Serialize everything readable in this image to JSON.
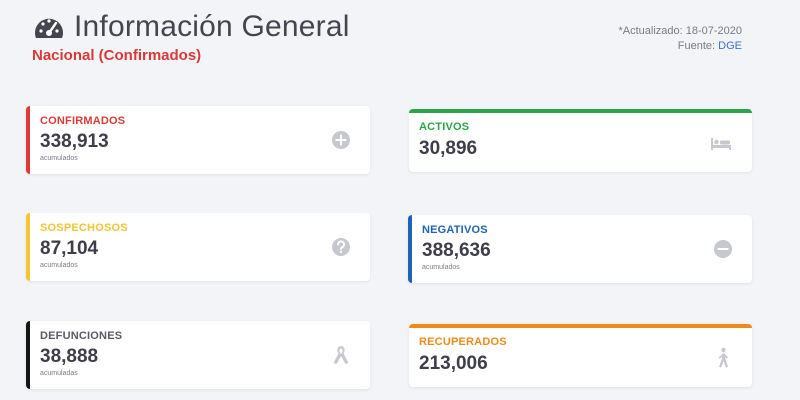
{
  "header": {
    "title": "Información General",
    "subtitle": "Nacional (Confirmados)",
    "updated": "*Actualizado: 18-07-2020",
    "source_label": "Fuente:",
    "source_link": "DGE",
    "icon": "dashboard-gauge-icon"
  },
  "colors": {
    "confirmados": "#dd3b36",
    "activos": "#2aa44a",
    "sospechosos": "#f4c534",
    "negativos": "#1f63b4",
    "defunciones": "#151515",
    "recuperados": "#ec8a1e",
    "icon_gray": "#c7c7cf"
  },
  "cards": {
    "confirmados": {
      "label": "CONFIRMADOS",
      "value": "338,913",
      "sub": "acumulados",
      "icon": "plus-circle-icon"
    },
    "activos": {
      "label": "ACTIVOS",
      "value": "30,896",
      "icon": "bed-icon"
    },
    "sospechosos": {
      "label": "SOSPECHOSOS",
      "value": "87,104",
      "sub": "acumulados",
      "icon": "question-circle-icon"
    },
    "negativos": {
      "label": "NEGATIVOS",
      "value": "388,636",
      "sub": "acumulados",
      "icon": "minus-circle-icon"
    },
    "defunciones": {
      "label": "DEFUNCIONES",
      "value": "38,888",
      "sub": "acumuladas",
      "icon": "ribbon-icon"
    },
    "recuperados": {
      "label": "RECUPERADOS",
      "value": "213,006",
      "icon": "walking-person-icon"
    }
  }
}
